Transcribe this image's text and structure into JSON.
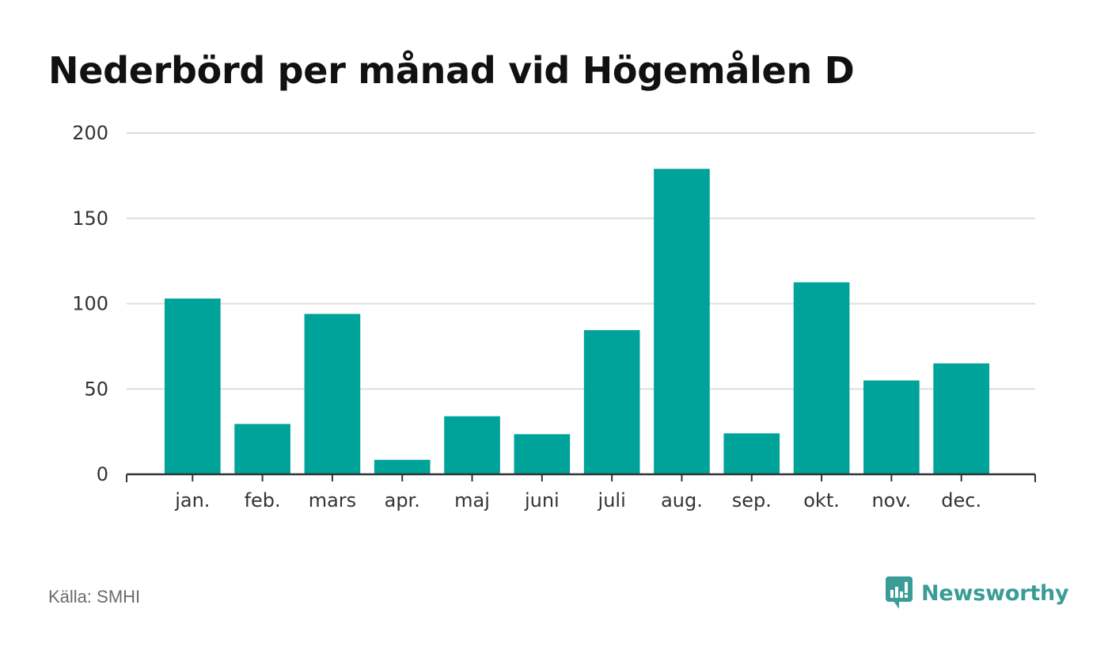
{
  "title": "Nederbörd per månad vid Högemålen D",
  "source": "Källa: SMHI",
  "brand": {
    "name": "Newsworthy",
    "icon": "newsworthy-logo-icon",
    "color": "#3a9c96"
  },
  "colors": {
    "bar": "#00a39a",
    "grid": "#dddddd",
    "axis": "#333333",
    "tick_text": "#333333"
  },
  "chart_data": {
    "type": "bar",
    "categories": [
      "jan.",
      "feb.",
      "mars",
      "apr.",
      "maj",
      "juni",
      "juli",
      "aug.",
      "sep.",
      "okt.",
      "nov.",
      "dec."
    ],
    "values": [
      103,
      29.5,
      94,
      8.5,
      34,
      23.5,
      84.5,
      179,
      24,
      112.5,
      55,
      65
    ],
    "yticks": [
      0,
      50,
      100,
      150,
      200
    ],
    "ylim": [
      0,
      200
    ],
    "grid": true,
    "legend": "none"
  }
}
